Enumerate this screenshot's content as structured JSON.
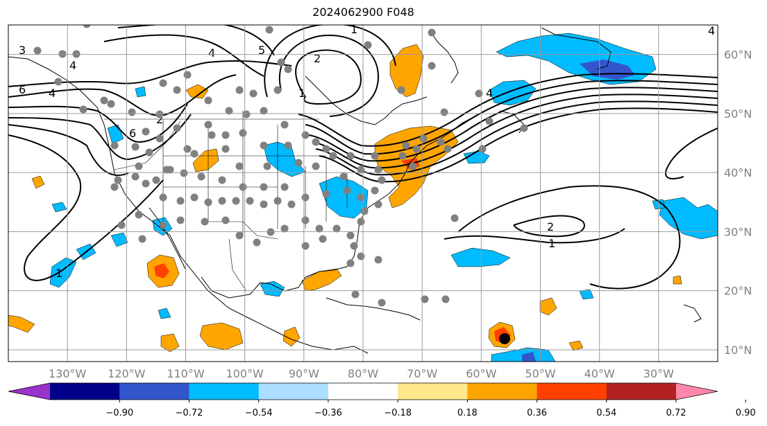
{
  "title": "2024062900 F048",
  "map": {
    "projection": "PlateCarree",
    "extent": {
      "lon_min": -140,
      "lon_max": -20,
      "lat_min": 8,
      "lat_max": 65
    },
    "grid": true,
    "lon_labels": [
      "130°W",
      "120°W",
      "110°W",
      "100°W",
      "90°W",
      "80°W",
      "70°W",
      "60°W",
      "50°W",
      "40°W",
      "30°W"
    ],
    "lon_values": [
      -130,
      -120,
      -110,
      -100,
      -90,
      -80,
      -70,
      -60,
      -50,
      -40,
      -30
    ],
    "lat_labels": [
      "60°N",
      "50°N",
      "40°N",
      "30°N",
      "20°N",
      "10°N"
    ],
    "lat_values": [
      60,
      50,
      40,
      30,
      20,
      10
    ],
    "colors": {
      "grid": "#999999",
      "coast": "#000000",
      "dots": "#808080"
    }
  },
  "colorbar": {
    "levels": [
      "−0.90",
      "−0.72",
      "−0.54",
      "−0.36",
      "−0.18",
      "0.18",
      "0.36",
      "0.54",
      "0.72",
      "0.90"
    ],
    "colors": [
      "#9933cc",
      "#000088",
      "#3355cc",
      "#00bbff",
      "#aaddff",
      "#ffffff",
      "#ffe88a",
      "#ffa500",
      "#ff4000",
      "#b22222",
      "#ff88aa"
    ]
  },
  "contour_labels": [
    "3",
    "4",
    "6",
    "4",
    "4",
    "5",
    "2",
    "1",
    "2",
    "1",
    "1",
    "2",
    "1",
    "4",
    "6",
    "4"
  ]
}
